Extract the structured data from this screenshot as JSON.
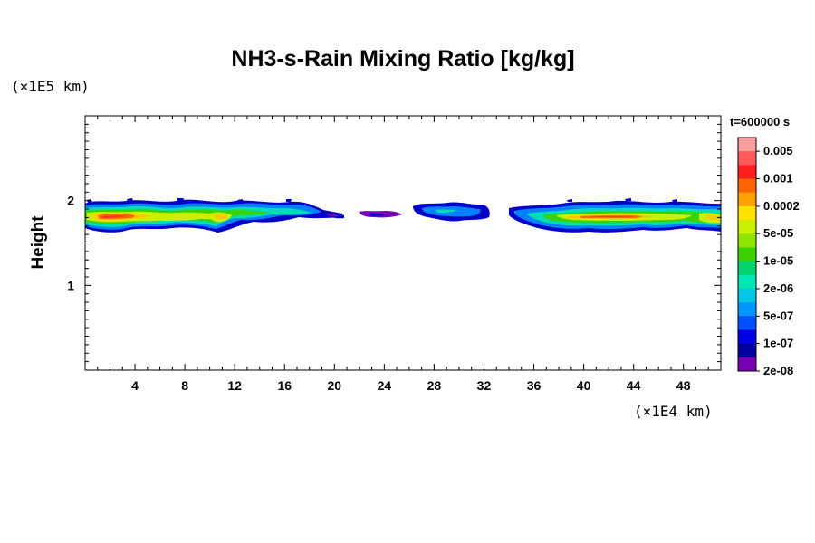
{
  "chart_data": {
    "type": "heatmap",
    "title": "NH3-s-Rain Mixing Ratio [kg/kg]",
    "ylabel": "Height",
    "x_unit": "(×1E4 km)",
    "y_unit": "(×1E5 km)",
    "time_label": "t=600000 s",
    "xlim": [
      0,
      51
    ],
    "ylim": [
      0,
      3
    ],
    "x_ticks": [
      "4",
      "8",
      "12",
      "16",
      "20",
      "24",
      "28",
      "32",
      "36",
      "40",
      "44",
      "48"
    ],
    "x_tick_values": [
      4,
      8,
      12,
      16,
      20,
      24,
      28,
      32,
      36,
      40,
      44,
      48
    ],
    "y_ticks": [
      "1",
      "2"
    ],
    "y_tick_values": [
      1,
      2
    ],
    "colorbar": {
      "labels": [
        "0.005",
        "0.001",
        "0.0002",
        "5e-05",
        "1e-05",
        "2e-06",
        "5e-07",
        "1e-07",
        "2e-08"
      ],
      "colors": [
        "#ff9c9c",
        "#ff5a5a",
        "#ff1e1e",
        "#ff6400",
        "#ffa000",
        "#ffe100",
        "#c8f000",
        "#8ce600",
        "#3cd200",
        "#00d26e",
        "#00e6b4",
        "#00c8e6",
        "#0096ff",
        "#0050ff",
        "#0000e6",
        "#0000a0",
        "#7800b4"
      ]
    },
    "bands": [
      {
        "x_start": 0.0,
        "x_end": 19.0,
        "y_center": 1.8,
        "intensity": "high"
      },
      {
        "x_start": 19.0,
        "x_end": 21.0,
        "y_center": 1.83,
        "intensity": "low"
      },
      {
        "x_start": 22.5,
        "x_end": 25.0,
        "y_center": 1.85,
        "intensity": "trace"
      },
      {
        "x_start": 26.0,
        "x_end": 32.0,
        "y_center": 1.85,
        "intensity": "medium"
      },
      {
        "x_start": 34.0,
        "x_end": 51.0,
        "y_center": 1.8,
        "intensity": "high"
      }
    ]
  }
}
